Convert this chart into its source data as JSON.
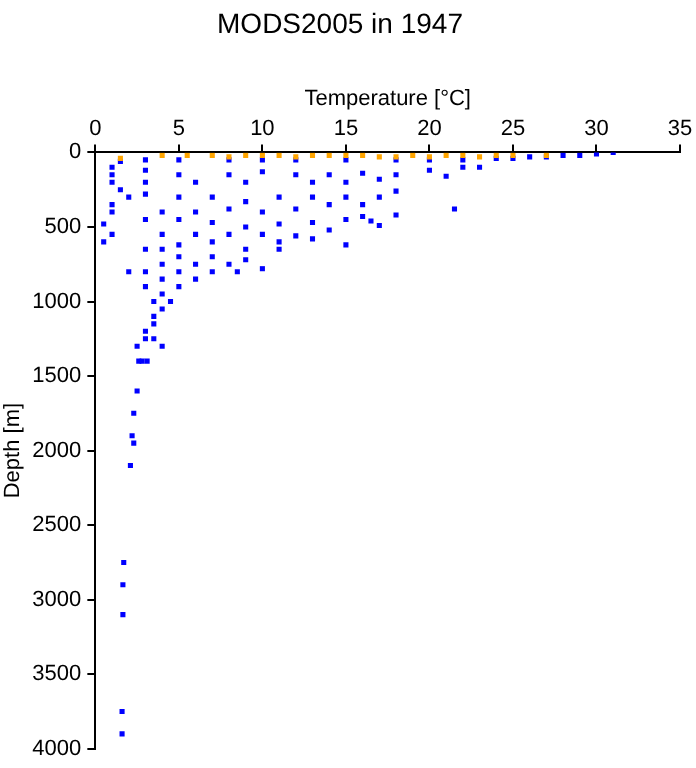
{
  "chart_data": {
    "type": "scatter",
    "title": "MODS2005 in 1947",
    "xlabel": "Temperature [°C]",
    "ylabel": "Depth [m]",
    "xlim": [
      0,
      35
    ],
    "xticks": [
      0,
      5,
      10,
      15,
      20,
      25,
      30,
      35
    ],
    "ylim": [
      4000,
      0
    ],
    "yticks": [
      0,
      500,
      1000,
      1500,
      2000,
      2500,
      3000,
      3500,
      4000
    ],
    "grid": false,
    "legend": false,
    "marker": "square",
    "series": [
      {
        "color": "#0000ff",
        "x": [
          31,
          30,
          29,
          28,
          27,
          26,
          25,
          24,
          22,
          20,
          18,
          15,
          12,
          10,
          8,
          5,
          3,
          1.5,
          1,
          1,
          1,
          3,
          5,
          8,
          10,
          12,
          14,
          16,
          18,
          20,
          22,
          23,
          21,
          17,
          15,
          13,
          9,
          6,
          3,
          1.5,
          2,
          3,
          5,
          7,
          9,
          11,
          13,
          15,
          17,
          18,
          16,
          14,
          12,
          10,
          8,
          6,
          4,
          1,
          1,
          21.5,
          18,
          17,
          0.5,
          0.5,
          1,
          3,
          5,
          7,
          9,
          11,
          13,
          15,
          16,
          14,
          12,
          10,
          8,
          6,
          4,
          15,
          11,
          13,
          16.5,
          3,
          4,
          5,
          7,
          9,
          11,
          5,
          7,
          9,
          8,
          6,
          4,
          3,
          5,
          7,
          6,
          4,
          3,
          4,
          5,
          2,
          8.5,
          10,
          3.5,
          4,
          3.5,
          4.5,
          3.5,
          3,
          3.5,
          4,
          3,
          2.5,
          2.8,
          2.6,
          3.1,
          2.5,
          2.3,
          2.2,
          2.3,
          2.1,
          1.7,
          1.65,
          1.65,
          1.6,
          1.6
        ],
        "values": [
          0,
          10,
          20,
          20,
          30,
          30,
          40,
          40,
          50,
          50,
          50,
          50,
          50,
          50,
          50,
          50,
          50,
          60,
          100,
          150,
          200,
          120,
          150,
          150,
          130,
          150,
          150,
          140,
          150,
          120,
          100,
          100,
          160,
          180,
          200,
          200,
          200,
          200,
          200,
          250,
          300,
          280,
          300,
          300,
          330,
          300,
          300,
          300,
          300,
          260,
          350,
          350,
          380,
          400,
          380,
          400,
          400,
          350,
          400,
          380,
          420,
          490,
          480,
          600,
          550,
          450,
          450,
          470,
          500,
          480,
          470,
          450,
          430,
          520,
          560,
          550,
          550,
          550,
          550,
          620,
          600,
          580,
          460,
          650,
          650,
          620,
          600,
          650,
          650,
          700,
          700,
          720,
          750,
          750,
          750,
          800,
          800,
          800,
          850,
          850,
          900,
          950,
          900,
          800,
          800,
          780,
          1000,
          1050,
          1100,
          1000,
          1150,
          1200,
          1250,
          1300,
          1250,
          1300,
          1400,
          1400,
          1400,
          1600,
          1750,
          1900,
          1950,
          2100,
          2750,
          2900,
          3100,
          3750,
          3900
        ]
      },
      {
        "color": "#ffa500",
        "x": [
          1.5,
          4,
          5.5,
          7,
          8,
          9,
          10,
          11,
          12,
          13,
          14,
          15,
          16,
          17,
          18,
          19,
          20,
          21,
          22,
          23,
          24,
          25,
          27
        ],
        "values": [
          40,
          20,
          20,
          20,
          30,
          20,
          20,
          20,
          30,
          20,
          20,
          20,
          20,
          30,
          30,
          20,
          30,
          20,
          20,
          30,
          20,
          20,
          20
        ]
      }
    ]
  }
}
